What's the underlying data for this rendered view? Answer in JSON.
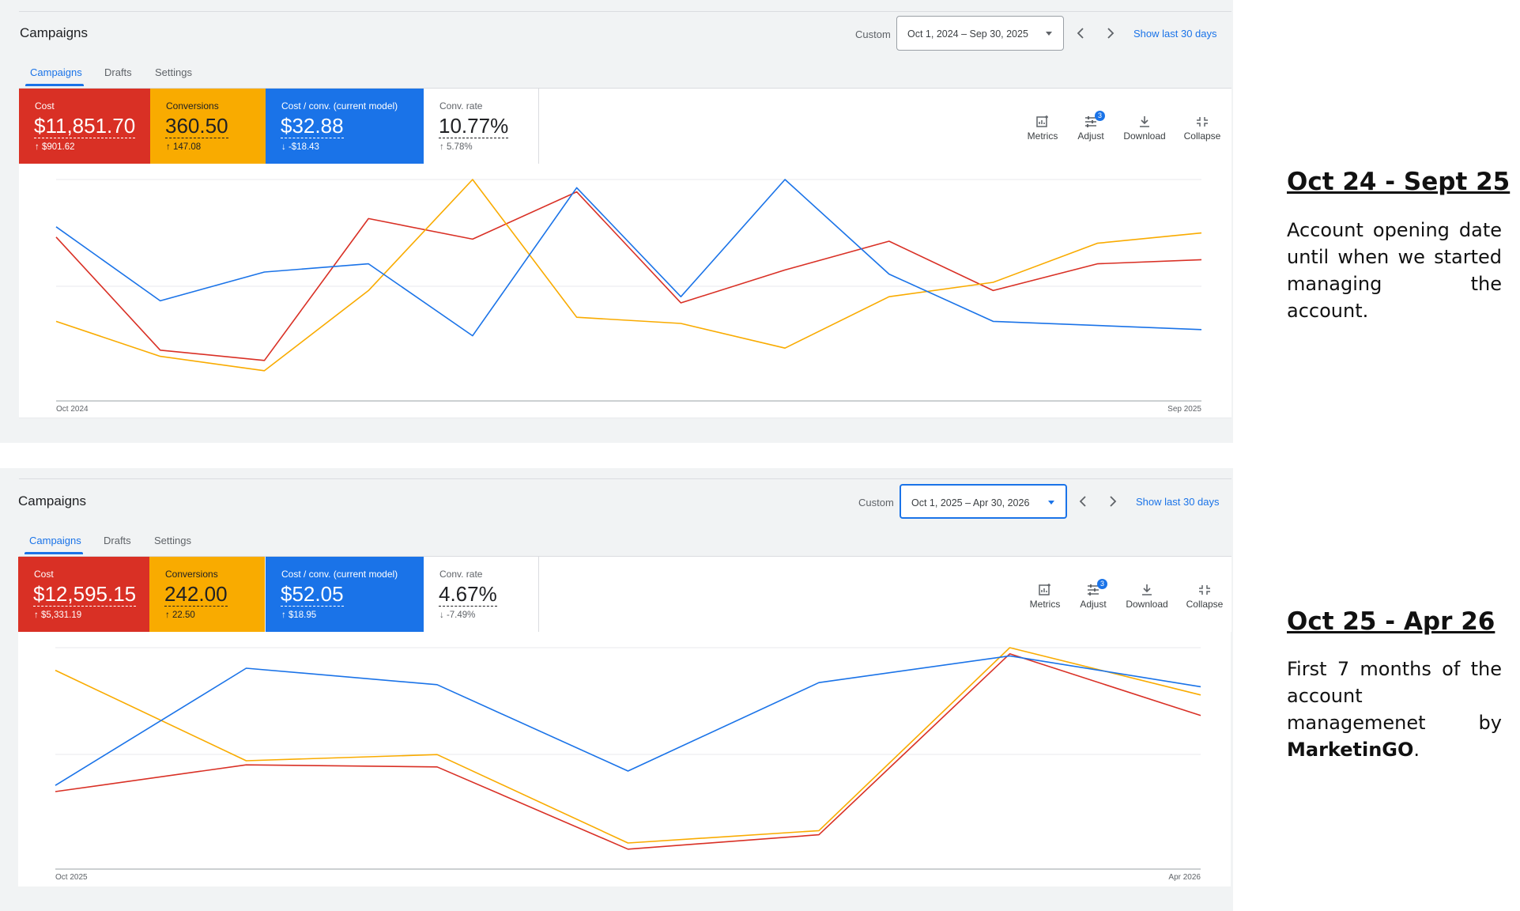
{
  "colors": {
    "cost": "#d93025",
    "conversions": "#f9ab00",
    "cost_per_conv": "#1a73e8",
    "accent": "#1a73e8"
  },
  "panels": [
    {
      "title": "Campaigns",
      "custom_label": "Custom",
      "date_range": "Oct 1, 2024 – Sep 30, 2025",
      "date_dropdown_focused": false,
      "show_last_30": "Show last 30 days",
      "tabs": [
        "Campaigns",
        "Drafts",
        "Settings"
      ],
      "active_tab": "Campaigns",
      "metrics": {
        "cost": {
          "label": "Cost",
          "value": "$11,851.70",
          "delta": "$901.62",
          "direction": "up"
        },
        "conversions": {
          "label": "Conversions",
          "value": "360.50",
          "delta": "147.08",
          "direction": "up"
        },
        "cost_per_conv": {
          "label": "Cost / conv. (current model)",
          "value": "$32.88",
          "delta": "-$18.43",
          "direction": "down"
        },
        "conv_rate": {
          "label": "Conv. rate",
          "value": "10.77%",
          "delta": "5.78%",
          "direction": "up"
        }
      },
      "toolbar": {
        "metrics": "Metrics",
        "adjust": "Adjust",
        "adjust_badge": "3",
        "download": "Download",
        "collapse": "Collapse"
      },
      "axis": {
        "start": "Oct 2024",
        "end": "Sep 2025"
      },
      "chart_data": {
        "type": "line",
        "x": [
          "Oct 2024",
          "Nov 2024",
          "Dec 2024",
          "Jan 2025",
          "Feb 2025",
          "Mar 2025",
          "Apr 2025",
          "May 2025",
          "Jun 2025",
          "Jul 2025",
          "Aug 2025",
          "Sep 2025"
        ],
        "ylim": [
          0,
          100
        ],
        "normalized": true,
        "series": [
          {
            "metric": "cost",
            "values": [
              72,
              17,
              12,
              81,
              71,
              94,
              40,
              56,
              70,
              46,
              59,
              61
            ]
          },
          {
            "metric": "conversions",
            "values": [
              31,
              14,
              7,
              46,
              100,
              33,
              30,
              18,
              43,
              50,
              69,
              74
            ]
          },
          {
            "metric": "cost_per_conv",
            "values": [
              77,
              41,
              55,
              59,
              24,
              96,
              43,
              100,
              54,
              31,
              29,
              27
            ]
          }
        ]
      }
    },
    {
      "title": "Campaigns",
      "custom_label": "Custom",
      "date_range": "Oct 1, 2025 – Apr 30, 2026",
      "date_dropdown_focused": true,
      "show_last_30": "Show last 30 days",
      "tabs": [
        "Campaigns",
        "Drafts",
        "Settings"
      ],
      "active_tab": "Campaigns",
      "metrics": {
        "cost": {
          "label": "Cost",
          "value": "$12,595.15",
          "delta": "$5,331.19",
          "direction": "up"
        },
        "conversions": {
          "label": "Conversions",
          "value": "242.00",
          "delta": "22.50",
          "direction": "up"
        },
        "cost_per_conv": {
          "label": "Cost / conv. (current model)",
          "value": "$52.05",
          "delta": "$18.95",
          "direction": "up"
        },
        "conv_rate": {
          "label": "Conv. rate",
          "value": "4.67%",
          "delta": "-7.49%",
          "direction": "down"
        }
      },
      "toolbar": {
        "metrics": "Metrics",
        "adjust": "Adjust",
        "adjust_badge": "3",
        "download": "Download",
        "collapse": "Collapse"
      },
      "axis": {
        "start": "Oct 2025",
        "end": "Apr 2026"
      },
      "chart_data": {
        "type": "line",
        "x": [
          "Oct 2025",
          "Nov 2025",
          "Dec 2025",
          "Jan 2026",
          "Feb 2026",
          "Mar 2026",
          "Apr 2026"
        ],
        "ylim": [
          0,
          100
        ],
        "normalized": true,
        "series": [
          {
            "metric": "cost",
            "values": [
              30,
              43,
              42,
              2,
              9,
              97,
              67
            ]
          },
          {
            "metric": "conversions",
            "values": [
              89,
              45,
              48,
              5,
              11,
              100,
              77
            ]
          },
          {
            "metric": "cost_per_conv",
            "values": [
              33,
              90,
              82,
              40,
              83,
              96,
              81
            ]
          }
        ]
      }
    }
  ],
  "side_notes": [
    {
      "heading": "Oct 24 - Sept 25",
      "body": "Account opening date until when we started managing the account."
    },
    {
      "heading": "Oct 25 - Apr 26",
      "body_before": "First 7 months of the account managemenet by ",
      "body_bold": "MarketinGO",
      "body_after": "."
    }
  ]
}
